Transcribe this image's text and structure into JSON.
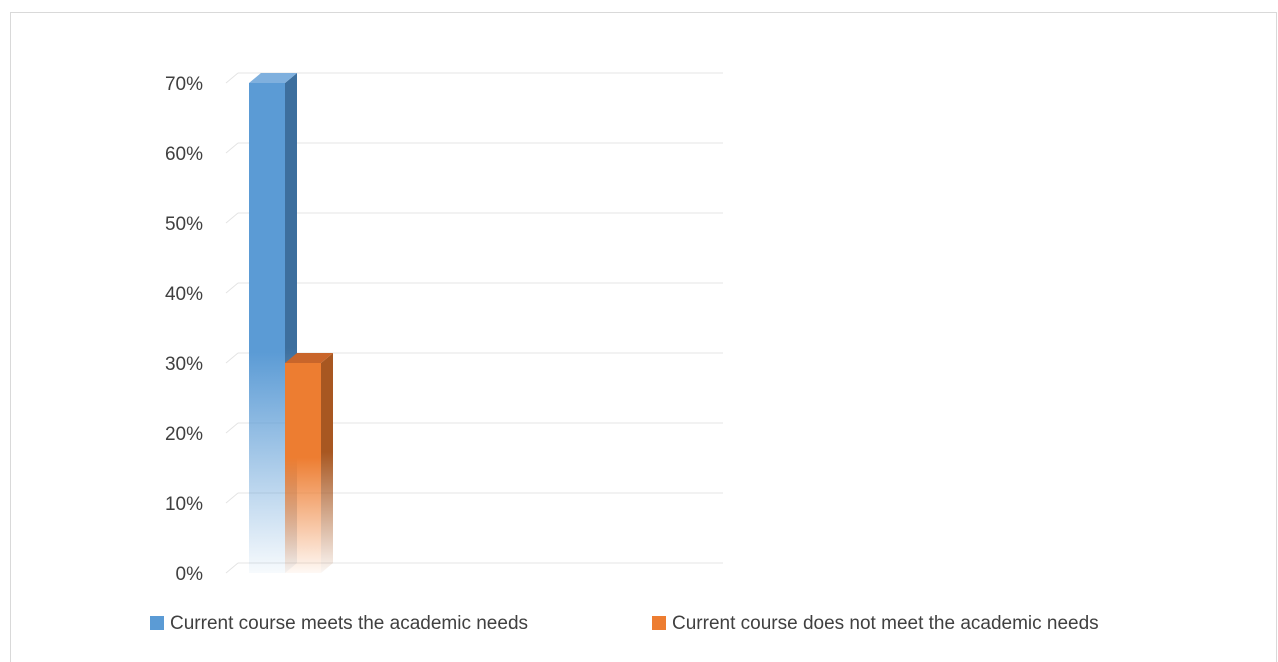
{
  "chart_data": {
    "type": "bar",
    "style": "3d-clustered-column",
    "categories": [
      ""
    ],
    "series": [
      {
        "name": "Current course meets the academic needs",
        "values": [
          0.7
        ],
        "color": "#5b9bd5"
      },
      {
        "name": "Current course does not meet the academic needs",
        "values": [
          0.3
        ],
        "color": "#ed7d31"
      }
    ],
    "ylim": [
      0,
      0.7
    ],
    "yticks": [
      {
        "value": 0.0,
        "label": "0%"
      },
      {
        "value": 0.1,
        "label": "10%"
      },
      {
        "value": 0.2,
        "label": "20%"
      },
      {
        "value": 0.3,
        "label": "30%"
      },
      {
        "value": 0.4,
        "label": "40%"
      },
      {
        "value": 0.5,
        "label": "50%"
      },
      {
        "value": 0.6,
        "label": "60%"
      },
      {
        "value": 0.7,
        "label": "70%"
      }
    ],
    "grid": true,
    "legend_position": "bottom"
  }
}
